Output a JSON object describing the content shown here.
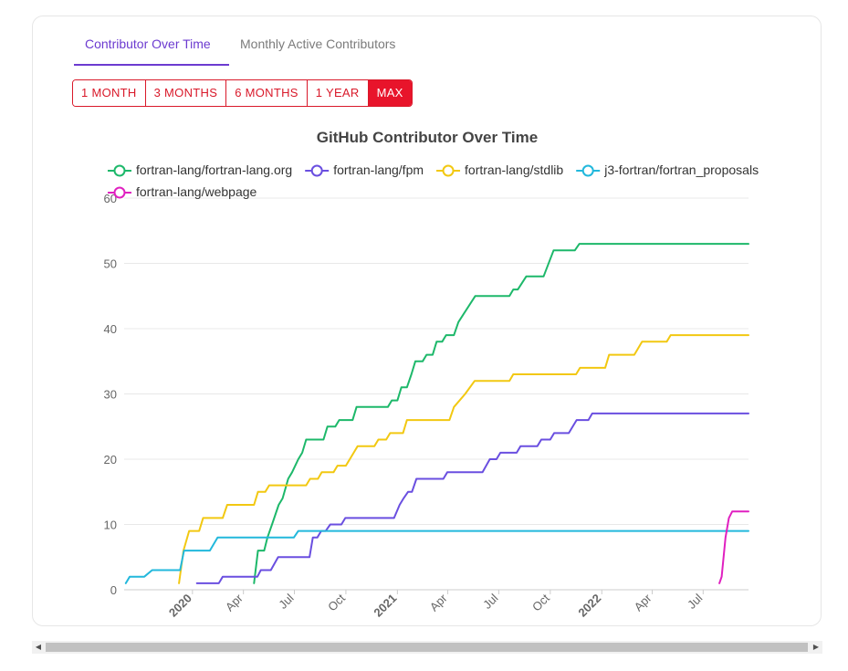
{
  "tabs": [
    {
      "label": "Contributor Over Time"
    },
    {
      "label": "Monthly Active Contributors"
    }
  ],
  "ranges": [
    "1 MONTH",
    "3 MONTHS",
    "6 MONTHS",
    "1 YEAR",
    "MAX"
  ],
  "active_range": "MAX",
  "chart_data": {
    "type": "line",
    "title": "GitHub Contributor Over Time",
    "xlabel": "",
    "ylabel": "",
    "ylim": [
      0,
      60
    ],
    "yticks": [
      0,
      10,
      20,
      30,
      40,
      50,
      60
    ],
    "xlim": [
      "2019-09-01",
      "2022-09-20"
    ],
    "xticks": [
      {
        "date": "2020-01-01",
        "label": "2020",
        "bold": true
      },
      {
        "date": "2020-04-01",
        "label": "Apr",
        "bold": false
      },
      {
        "date": "2020-07-01",
        "label": "Jul",
        "bold": false
      },
      {
        "date": "2020-10-01",
        "label": "Oct",
        "bold": false
      },
      {
        "date": "2021-01-01",
        "label": "2021",
        "bold": true
      },
      {
        "date": "2021-04-01",
        "label": "Apr",
        "bold": false
      },
      {
        "date": "2021-07-01",
        "label": "Jul",
        "bold": false
      },
      {
        "date": "2021-10-01",
        "label": "Oct",
        "bold": false
      },
      {
        "date": "2022-01-01",
        "label": "2022",
        "bold": true
      },
      {
        "date": "2022-04-01",
        "label": "Apr",
        "bold": false
      },
      {
        "date": "2022-07-01",
        "label": "Jul",
        "bold": false
      }
    ],
    "grid": true,
    "legend": "top",
    "series": [
      {
        "name": "fortran-lang/fortran-lang.org",
        "color": "#1db86a",
        "points": [
          [
            "2020-04-20",
            1
          ],
          [
            "2020-04-27",
            6
          ],
          [
            "2020-05-08",
            6
          ],
          [
            "2020-05-14",
            8
          ],
          [
            "2020-05-22",
            10
          ],
          [
            "2020-06-03",
            13
          ],
          [
            "2020-06-10",
            14
          ],
          [
            "2020-06-20",
            17
          ],
          [
            "2020-06-27",
            18
          ],
          [
            "2020-07-08",
            20
          ],
          [
            "2020-07-15",
            21
          ],
          [
            "2020-07-22",
            23
          ],
          [
            "2020-08-22",
            23
          ],
          [
            "2020-08-29",
            25
          ],
          [
            "2020-09-12",
            25
          ],
          [
            "2020-09-19",
            26
          ],
          [
            "2020-10-13",
            26
          ],
          [
            "2020-10-20",
            28
          ],
          [
            "2020-12-15",
            28
          ],
          [
            "2020-12-22",
            29
          ],
          [
            "2021-01-01",
            29
          ],
          [
            "2021-01-08",
            31
          ],
          [
            "2021-01-18",
            31
          ],
          [
            "2021-01-26",
            33
          ],
          [
            "2021-02-02",
            35
          ],
          [
            "2021-02-15",
            35
          ],
          [
            "2021-02-22",
            36
          ],
          [
            "2021-03-05",
            36
          ],
          [
            "2021-03-12",
            38
          ],
          [
            "2021-03-22",
            38
          ],
          [
            "2021-03-29",
            39
          ],
          [
            "2021-04-12",
            39
          ],
          [
            "2021-04-20",
            41
          ],
          [
            "2021-05-20",
            45
          ],
          [
            "2021-07-20",
            45
          ],
          [
            "2021-07-27",
            46
          ],
          [
            "2021-08-04",
            46
          ],
          [
            "2021-08-19",
            48
          ],
          [
            "2021-09-19",
            48
          ],
          [
            "2021-10-07",
            52
          ],
          [
            "2021-11-14",
            52
          ],
          [
            "2021-11-22",
            53
          ],
          [
            "2022-09-20",
            53
          ]
        ]
      },
      {
        "name": "fortran-lang/fpm",
        "color": "#6a4fe0",
        "points": [
          [
            "2020-01-09",
            1
          ],
          [
            "2020-02-17",
            1
          ],
          [
            "2020-02-24",
            2
          ],
          [
            "2020-04-26",
            2
          ],
          [
            "2020-05-02",
            3
          ],
          [
            "2020-05-20",
            3
          ],
          [
            "2020-06-02",
            5
          ],
          [
            "2020-07-28",
            5
          ],
          [
            "2020-08-03",
            8
          ],
          [
            "2020-08-11",
            8
          ],
          [
            "2020-08-18",
            9
          ],
          [
            "2020-08-26",
            9
          ],
          [
            "2020-09-03",
            10
          ],
          [
            "2020-09-23",
            10
          ],
          [
            "2020-09-30",
            11
          ],
          [
            "2020-12-26",
            11
          ],
          [
            "2021-01-05",
            13
          ],
          [
            "2021-01-12",
            14
          ],
          [
            "2021-01-20",
            15
          ],
          [
            "2021-01-27",
            15
          ],
          [
            "2021-02-04",
            17
          ],
          [
            "2021-03-24",
            17
          ],
          [
            "2021-03-31",
            18
          ],
          [
            "2021-06-02",
            18
          ],
          [
            "2021-06-15",
            20
          ],
          [
            "2021-06-27",
            20
          ],
          [
            "2021-07-04",
            21
          ],
          [
            "2021-08-02",
            21
          ],
          [
            "2021-08-09",
            22
          ],
          [
            "2021-09-08",
            22
          ],
          [
            "2021-09-15",
            23
          ],
          [
            "2021-10-01",
            23
          ],
          [
            "2021-10-08",
            24
          ],
          [
            "2021-11-03",
            24
          ],
          [
            "2021-11-17",
            26
          ],
          [
            "2021-12-08",
            26
          ],
          [
            "2021-12-15",
            27
          ],
          [
            "2022-09-20",
            27
          ]
        ]
      },
      {
        "name": "fortran-lang/stdlib",
        "color": "#f2c811",
        "points": [
          [
            "2019-12-08",
            1
          ],
          [
            "2019-12-16",
            6
          ],
          [
            "2019-12-26",
            9
          ],
          [
            "2020-01-13",
            9
          ],
          [
            "2020-01-20",
            11
          ],
          [
            "2020-02-24",
            11
          ],
          [
            "2020-03-03",
            13
          ],
          [
            "2020-04-20",
            13
          ],
          [
            "2020-04-27",
            15
          ],
          [
            "2020-05-10",
            15
          ],
          [
            "2020-05-17",
            16
          ],
          [
            "2020-07-22",
            16
          ],
          [
            "2020-07-29",
            17
          ],
          [
            "2020-08-12",
            17
          ],
          [
            "2020-08-19",
            18
          ],
          [
            "2020-09-09",
            18
          ],
          [
            "2020-09-16",
            19
          ],
          [
            "2020-10-01",
            19
          ],
          [
            "2020-10-15",
            21
          ],
          [
            "2020-10-22",
            22
          ],
          [
            "2020-11-21",
            22
          ],
          [
            "2020-11-28",
            23
          ],
          [
            "2020-12-12",
            23
          ],
          [
            "2020-12-19",
            24
          ],
          [
            "2021-01-11",
            24
          ],
          [
            "2021-01-18",
            26
          ],
          [
            "2021-04-04",
            26
          ],
          [
            "2021-04-12",
            28
          ],
          [
            "2021-05-02",
            30
          ],
          [
            "2021-05-19",
            32
          ],
          [
            "2021-07-20",
            32
          ],
          [
            "2021-07-27",
            33
          ],
          [
            "2021-11-16",
            33
          ],
          [
            "2021-11-23",
            34
          ],
          [
            "2022-01-07",
            34
          ],
          [
            "2022-01-14",
            36
          ],
          [
            "2022-02-28",
            36
          ],
          [
            "2022-03-14",
            38
          ],
          [
            "2022-04-27",
            38
          ],
          [
            "2022-05-04",
            39
          ],
          [
            "2022-09-20",
            39
          ]
        ]
      },
      {
        "name": "j3-fortran/fortran_proposals",
        "color": "#22b8dc",
        "points": [
          [
            "2019-09-04",
            1
          ],
          [
            "2019-09-11",
            2
          ],
          [
            "2019-10-07",
            2
          ],
          [
            "2019-10-21",
            3
          ],
          [
            "2019-12-10",
            3
          ],
          [
            "2019-12-17",
            6
          ],
          [
            "2020-02-01",
            6
          ],
          [
            "2020-02-15",
            8
          ],
          [
            "2020-06-30",
            8
          ],
          [
            "2020-07-08",
            9
          ],
          [
            "2022-09-20",
            9
          ]
        ]
      },
      {
        "name": "fortran-lang/webpage",
        "color": "#e020c0",
        "points": [
          [
            "2022-07-30",
            1
          ],
          [
            "2022-08-03",
            2
          ],
          [
            "2022-08-10",
            8
          ],
          [
            "2022-08-16",
            11
          ],
          [
            "2022-08-22",
            12
          ],
          [
            "2022-09-20",
            12
          ]
        ]
      }
    ]
  }
}
